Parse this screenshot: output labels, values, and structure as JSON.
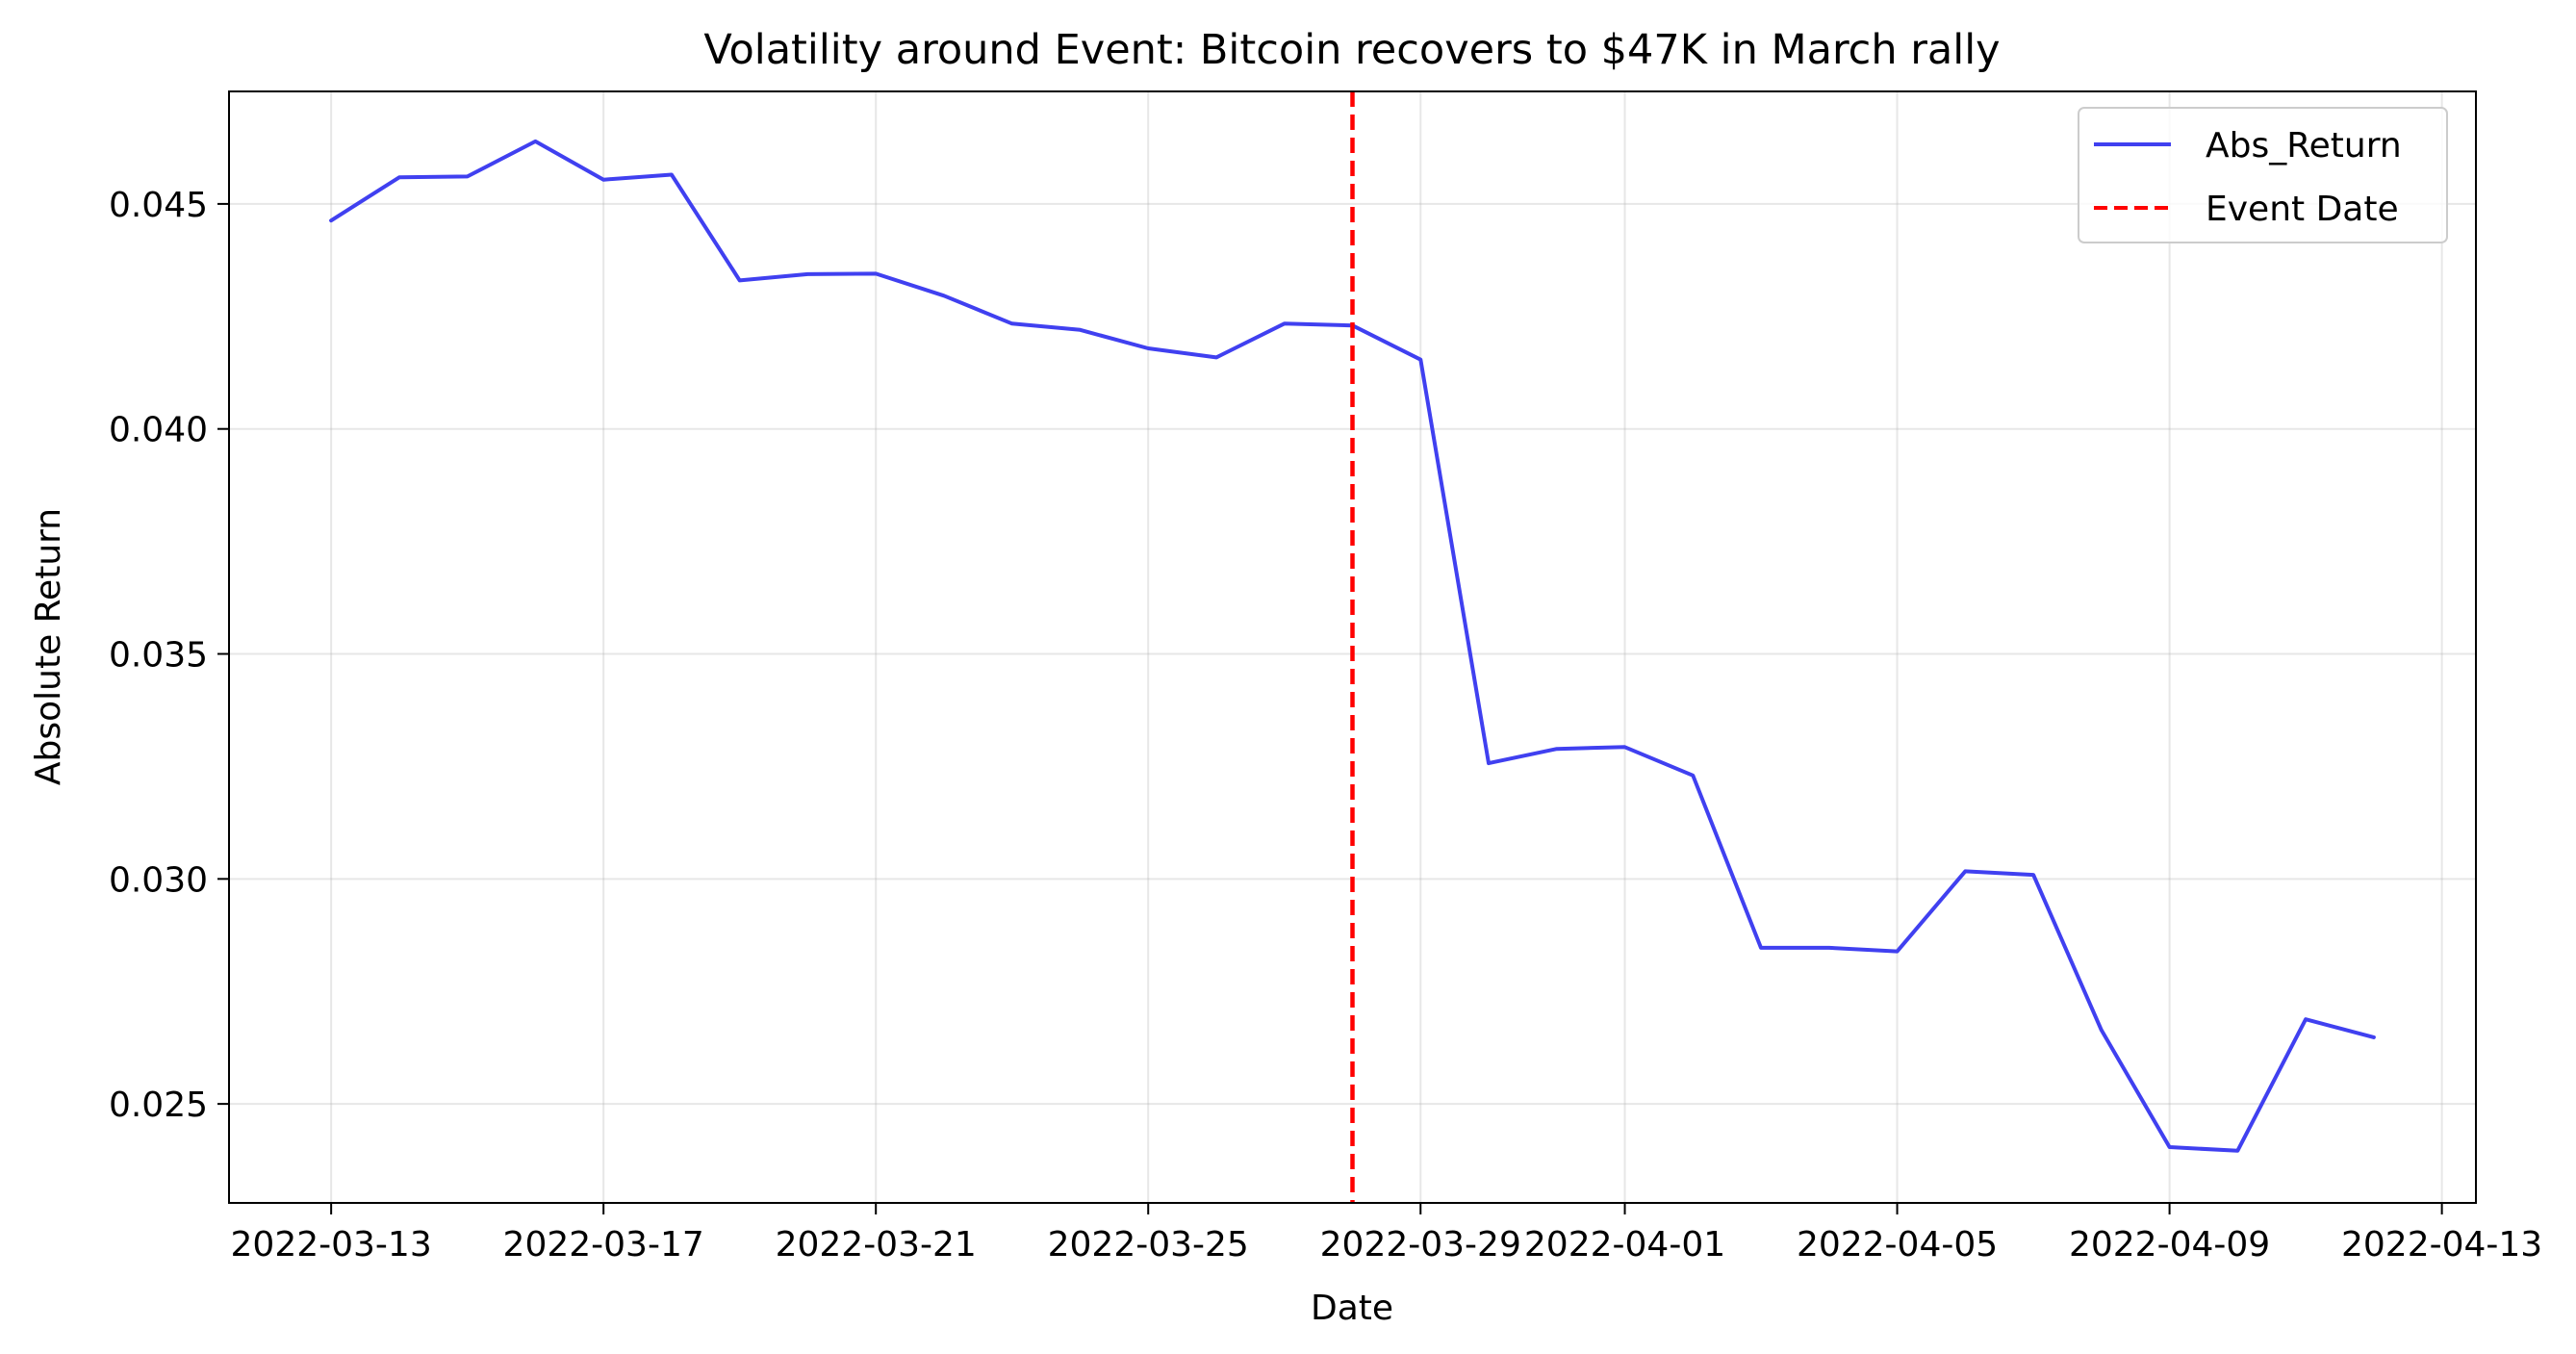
{
  "chart_data": {
    "type": "line",
    "title": "Volatility around Event: Bitcoin recovers to $47K in March rally",
    "xlabel": "Date",
    "ylabel": "Absolute Return",
    "xlim": [
      "2022-03-11T12:00",
      "2022-04-13T12:00"
    ],
    "ylim": [
      0.0228,
      0.0475
    ],
    "x_ticks": [
      "2022-03-13",
      "2022-03-17",
      "2022-03-21",
      "2022-03-25",
      "2022-03-29",
      "2022-04-01",
      "2022-04-05",
      "2022-04-09",
      "2022-04-13"
    ],
    "y_ticks": [
      0.025,
      0.03,
      0.035,
      0.04,
      0.045
    ],
    "y_tick_labels": [
      "0.025",
      "0.030",
      "0.035",
      "0.040",
      "0.045"
    ],
    "grid": true,
    "legend_position": "upper right",
    "event_date": "2022-03-28",
    "series": [
      {
        "name": "Abs_Return",
        "color": "#4040f0",
        "style": "solid",
        "x": [
          "2022-03-13",
          "2022-03-14",
          "2022-03-15",
          "2022-03-16",
          "2022-03-17",
          "2022-03-18",
          "2022-03-19",
          "2022-03-20",
          "2022-03-21",
          "2022-03-22",
          "2022-03-23",
          "2022-03-24",
          "2022-03-25",
          "2022-03-26",
          "2022-03-27",
          "2022-03-28",
          "2022-03-29",
          "2022-03-30",
          "2022-03-31",
          "2022-04-01",
          "2022-04-02",
          "2022-04-03",
          "2022-04-04",
          "2022-04-05",
          "2022-04-06",
          "2022-04-07",
          "2022-04-08",
          "2022-04-09",
          "2022-04-10",
          "2022-04-11",
          "2022-04-12"
        ],
        "values": [
          0.04463,
          0.04559,
          0.04561,
          0.04639,
          0.04554,
          0.04565,
          0.0433,
          0.04344,
          0.04345,
          0.04296,
          0.04234,
          0.0422,
          0.04179,
          0.04159,
          0.04234,
          0.0423,
          0.04154,
          0.03257,
          0.03289,
          0.03293,
          0.0323,
          0.02847,
          0.02847,
          0.02839,
          0.03017,
          0.03009,
          0.02664,
          0.02404,
          0.02396,
          0.02688,
          0.02648
        ]
      }
    ],
    "legend": [
      {
        "label": "Abs_Return",
        "color": "#4040f0",
        "style": "solid"
      },
      {
        "label": "Event Date",
        "color": "#ff0000",
        "style": "dashed"
      }
    ],
    "event_line": {
      "label": "Event Date",
      "color": "#ff0000"
    }
  }
}
